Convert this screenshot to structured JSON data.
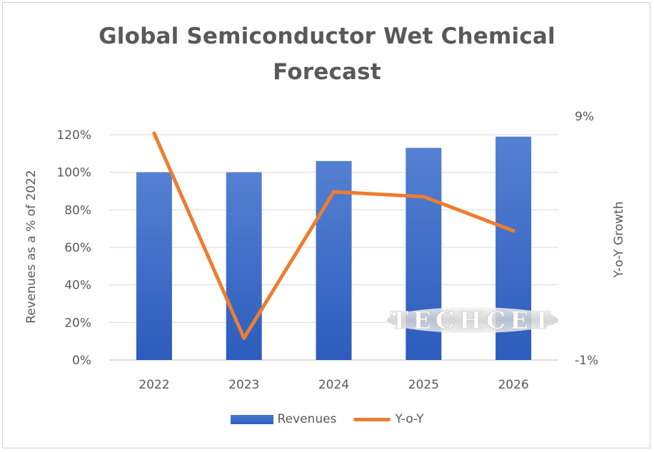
{
  "chart_data": {
    "type": "bar",
    "title": "Global Semiconductor Wet Chemical Forecast",
    "categories": [
      "2022",
      "2023",
      "2024",
      "2025",
      "2026"
    ],
    "series": [
      {
        "name": "Revenues",
        "type": "bar",
        "axis": "left",
        "color": "#3d6cc9",
        "values": [
          100,
          100,
          106,
          113,
          119
        ]
      },
      {
        "name": "Y-o-Y",
        "type": "line",
        "axis": "right",
        "color": "#ed7d31",
        "values": [
          8.3,
          -0.1,
          5.9,
          5.7,
          4.3
        ]
      }
    ],
    "ylabel": "Revenues as a % of 2022",
    "y2label": "Y-o-Y Growth",
    "ylim": [
      0,
      120
    ],
    "y2lim": [
      -1,
      9
    ],
    "yticks": [
      "0%",
      "20%",
      "40%",
      "60%",
      "80%",
      "100%",
      "120%"
    ],
    "y2ticks": [
      "-1%",
      "9%"
    ],
    "legend_position": "bottom"
  },
  "title_line1": "Global Semiconductor Wet Chemical",
  "title_line2": "Forecast",
  "watermark": "TECHCET",
  "legend": {
    "revenues": "Revenues",
    "yoy": "Y-o-Y"
  }
}
